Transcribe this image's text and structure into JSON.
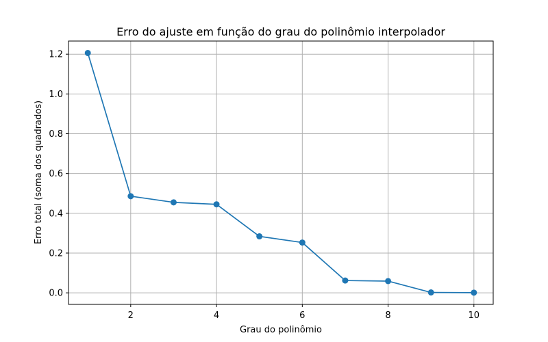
{
  "chart_data": {
    "type": "line",
    "title": "Erro do ajuste em função do grau do polinômio interpolador",
    "xlabel": "Grau do polinômio",
    "ylabel": "Erro total (soma dos quadrados)",
    "x": [
      1,
      2,
      3,
      4,
      5,
      6,
      7,
      8,
      9,
      10
    ],
    "series": [
      {
        "name": "Erro total",
        "values": [
          1.206,
          0.486,
          0.455,
          0.445,
          0.284,
          0.253,
          0.062,
          0.059,
          0.002,
          0.001
        ],
        "color": "#1f77b4",
        "marker": "circle"
      }
    ],
    "xlim": [
      0.55,
      10.45
    ],
    "ylim": [
      -0.058,
      1.266
    ],
    "xticks": [
      2,
      4,
      6,
      8,
      10
    ],
    "xtick_labels": [
      "2",
      "4",
      "6",
      "8",
      "10"
    ],
    "yticks": [
      0.0,
      0.2,
      0.4,
      0.6,
      0.8,
      1.0,
      1.2
    ],
    "ytick_labels": [
      "0.0",
      "0.2",
      "0.4",
      "0.6",
      "0.8",
      "1.0",
      "1.2"
    ],
    "grid": true,
    "grid_color": "#b0b0b0"
  }
}
